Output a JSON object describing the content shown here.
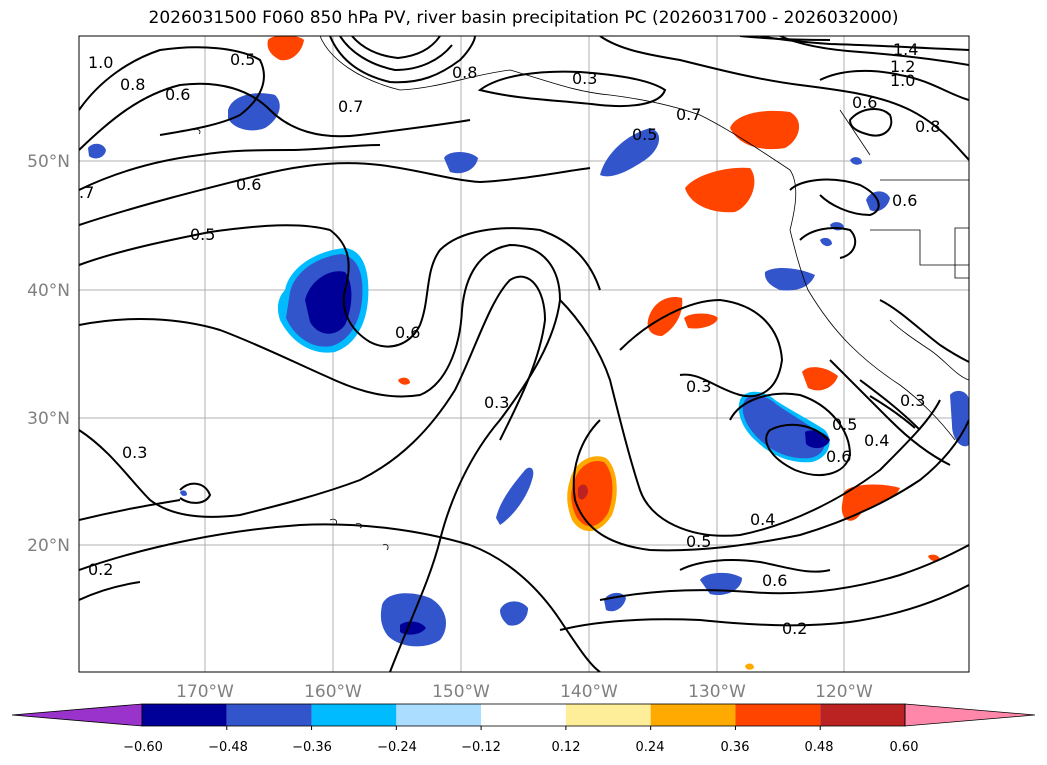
{
  "title": "2026031500 F060 850 hPa PV, river basin precipitation PC (2026031700 - 2026032000)",
  "map": {
    "lat_ticks": [
      "50°N",
      "40°N",
      "30°N",
      "20°N"
    ],
    "lon_ticks": [
      "170°W",
      "160°W",
      "150°W",
      "140°W",
      "130°W",
      "120°W"
    ],
    "contour_labels": [
      "1.0",
      "0.8",
      "0.6",
      "0.5",
      "0.7",
      ".7",
      "0.8",
      "0.3",
      "1.4",
      "1.2",
      "1.0",
      "0.6",
      "0.8",
      "0.6",
      "0.5",
      "0.7",
      "0.6",
      "0.5",
      "0.6",
      "0.3",
      "0.3",
      "0.3",
      "0.5",
      "0.4",
      "0.6",
      "0.4",
      "0.5",
      "0.6",
      "0.2",
      "0.2",
      "0.3"
    ]
  },
  "colorbar": {
    "colors": [
      "#9933cc",
      "#000099",
      "#3355cc",
      "#00bbff",
      "#aaddff",
      "#ffffff",
      "#ffee99",
      "#ffaa00",
      "#ff4400",
      "#bb2222",
      "#ff88aa"
    ],
    "tick_labels": [
      "−0.60",
      "−0.48",
      "−0.36",
      "−0.24",
      "−0.12",
      "0.12",
      "0.24",
      "0.36",
      "0.48",
      "0.60"
    ]
  }
}
